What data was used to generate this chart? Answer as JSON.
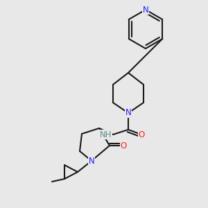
{
  "bg_color": "#e8e8e8",
  "bond_color": "#1a1a1a",
  "bond_width": 1.5,
  "atom_colors": {
    "N": "#2020ff",
    "O": "#ff2020",
    "C": "#1a1a1a",
    "H": "#5a9090"
  },
  "font_size": 8.5
}
